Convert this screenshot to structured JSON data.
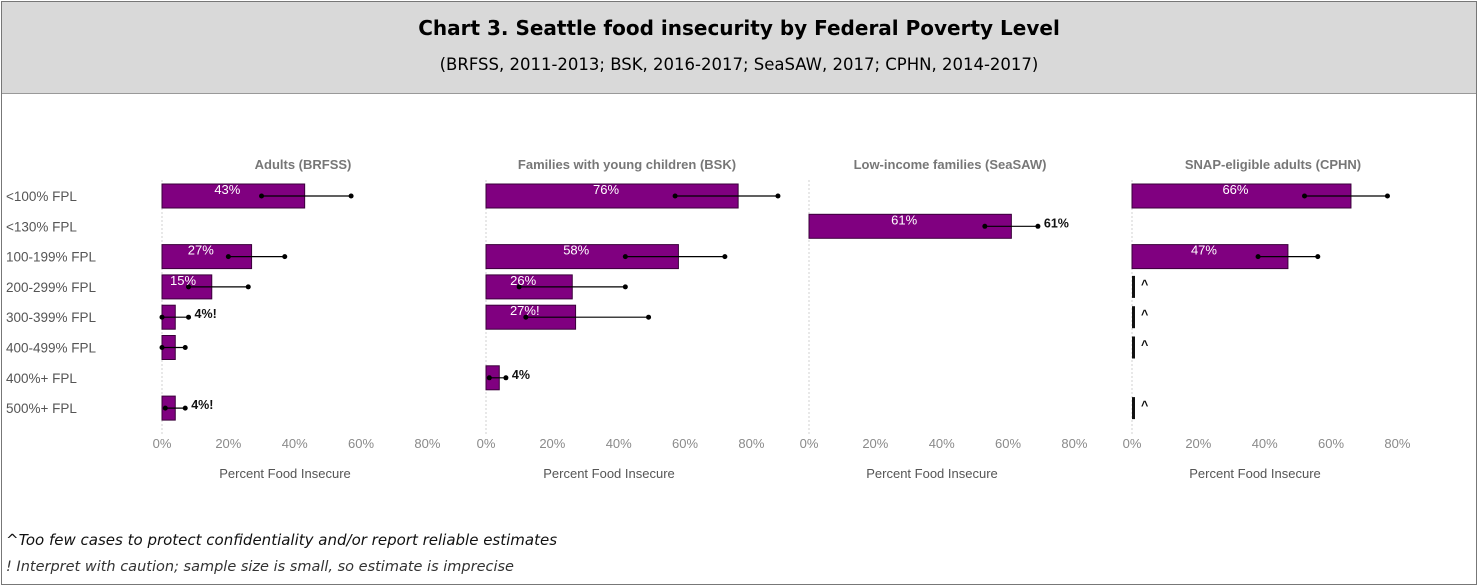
{
  "title": "Chart 3. Seattle food insecurity by Federal Poverty Level",
  "subtitle": "(BRFSS, 2011-2013; BSK, 2016-2017; SeaSAW, 2017; CPHN, 2014-2017)",
  "footnotes": {
    "caret": "^Too few cases to protect confidentiality and/or report reliable estimates",
    "bang": "!  Interpret with caution; sample size is small, so estimate is imprecise"
  },
  "colors": {
    "bar": "#800080",
    "bar_border": "#3a003a",
    "whisker": "#000000",
    "gridline": "#d0d0d0"
  },
  "chart_data": {
    "type": "bar",
    "orientation": "horizontal",
    "categories": [
      "<100% FPL",
      "<130% FPL",
      "100-199% FPL",
      "200-299% FPL",
      "300-399% FPL",
      "400-499% FPL",
      "400%+ FPL",
      "500%+ FPL"
    ],
    "xlabel": "Percent Food Insecure",
    "xlim": [
      0,
      85
    ],
    "xticks": [
      "0%",
      "20%",
      "40%",
      "60%",
      "80%"
    ],
    "panels": [
      {
        "title": "Adults (BRFSS)",
        "values": [
          43,
          null,
          27,
          15,
          4,
          4,
          null,
          4
        ],
        "ci_low": [
          30,
          null,
          20,
          8,
          0,
          0,
          null,
          1
        ],
        "ci_high": [
          57,
          null,
          37,
          26,
          8,
          7,
          null,
          7
        ],
        "labels": [
          "43%",
          "",
          "27%",
          "15%",
          "4%!",
          "",
          "",
          "4%!"
        ],
        "label_inside": [
          true,
          false,
          true,
          true,
          false,
          false,
          false,
          false
        ]
      },
      {
        "title": "Families with young children (BSK)",
        "values": [
          76,
          null,
          58,
          26,
          27,
          null,
          4,
          null
        ],
        "ci_low": [
          57,
          null,
          42,
          10,
          12,
          null,
          1,
          null
        ],
        "ci_high": [
          88,
          null,
          72,
          42,
          49,
          null,
          6,
          null
        ],
        "labels": [
          "76%",
          "",
          "58%",
          "26%",
          "27%!",
          "",
          "4%",
          ""
        ],
        "label_inside": [
          true,
          false,
          true,
          true,
          true,
          false,
          false,
          false
        ]
      },
      {
        "title": "Low-income families (SeaSAW)",
        "values": [
          null,
          61,
          null,
          null,
          null,
          null,
          null,
          null
        ],
        "ci_low": [
          null,
          53,
          null,
          null,
          null,
          null,
          null,
          null
        ],
        "ci_high": [
          null,
          69,
          null,
          null,
          null,
          null,
          null,
          null
        ],
        "labels": [
          "",
          "61%",
          "",
          "",
          "",
          "",
          "",
          ""
        ],
        "label_inside": [
          false,
          true,
          false,
          false,
          false,
          false,
          false,
          false
        ],
        "outside_labels": [
          "",
          "61%",
          "",
          "",
          "",
          "",
          "",
          ""
        ]
      },
      {
        "title": "SNAP-eligible adults (CPHN)",
        "values": [
          66,
          null,
          47,
          0,
          0,
          0,
          null,
          0
        ],
        "ci_low": [
          52,
          null,
          38,
          null,
          null,
          null,
          null,
          null
        ],
        "ci_high": [
          77,
          null,
          56,
          null,
          null,
          null,
          null,
          null
        ],
        "labels": [
          "66%",
          "",
          "47%",
          "^",
          "^",
          "^",
          "",
          "^"
        ],
        "label_inside": [
          true,
          false,
          true,
          false,
          false,
          false,
          false,
          false
        ]
      }
    ]
  }
}
